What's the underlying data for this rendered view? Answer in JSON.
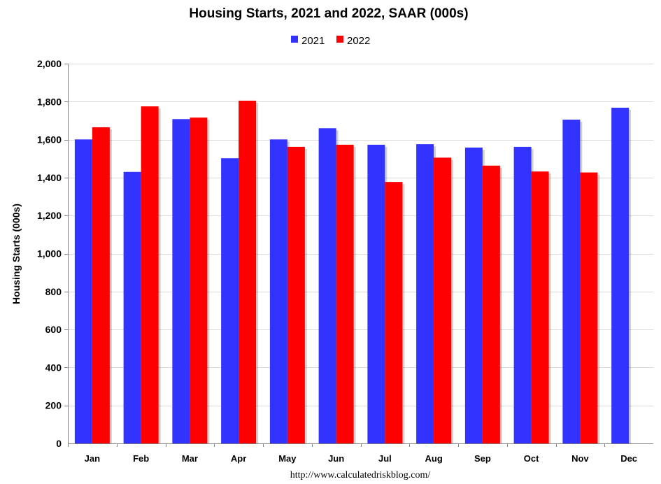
{
  "colors": {
    "series_2021": "#3333ff",
    "series_2022": "#ff0000",
    "grid": "#d9d9d9",
    "axis": "#808080",
    "plot_background": "#ffffff"
  },
  "footer": {
    "source": "http://www.calculatedriskblog.com/"
  },
  "chart_data": {
    "type": "bar",
    "title": "Housing Starts,  2021 and 2022, SAAR (000s)",
    "xlabel": "",
    "ylabel": "Housing Starts (000s)",
    "ylim": [
      0,
      2000
    ],
    "y_ticks": [
      0,
      200,
      400,
      600,
      800,
      1000,
      1200,
      1400,
      1600,
      1800,
      2000
    ],
    "y_tick_labels": [
      "0",
      "200",
      "400",
      "600",
      "800",
      "1,000",
      "1,200",
      "1,400",
      "1,600",
      "1,800",
      "2,000"
    ],
    "grid": true,
    "legend_position": "top-center",
    "categories": [
      "Jan",
      "Feb",
      "Mar",
      "Apr",
      "May",
      "Jun",
      "Jul",
      "Aug",
      "Sep",
      "Oct",
      "Nov",
      "Dec"
    ],
    "series": [
      {
        "name": "2021",
        "color": "#3333ff",
        "values": [
          1601,
          1430,
          1708,
          1502,
          1601,
          1660,
          1573,
          1576,
          1558,
          1562,
          1705,
          1768
        ]
      },
      {
        "name": "2022",
        "color": "#ff0000",
        "values": [
          1665,
          1775,
          1716,
          1805,
          1562,
          1573,
          1377,
          1505,
          1463,
          1432,
          1427,
          null
        ]
      }
    ]
  }
}
